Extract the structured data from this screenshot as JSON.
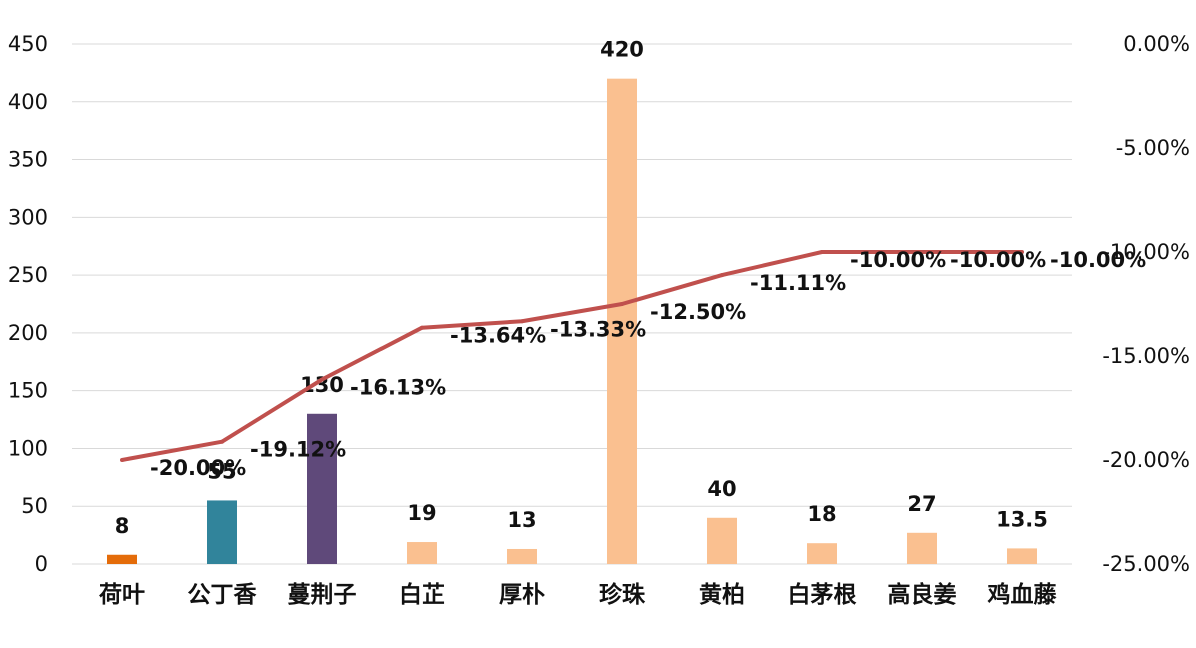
{
  "chart_data": {
    "type": "bar+line",
    "title": "",
    "categories": [
      "荷叶",
      "公丁香",
      "蔓荆子",
      "白芷",
      "厚朴",
      "珍珠",
      "黄柏",
      "白茅根",
      "高良姜",
      "鸡血藤"
    ],
    "series": [
      {
        "type": "bar",
        "axis": "left",
        "values": [
          8,
          55,
          130,
          19,
          13,
          420,
          40,
          18,
          27,
          13.5
        ],
        "labels": [
          "8",
          "55",
          "130",
          "19",
          "13",
          "420",
          "40",
          "18",
          "27",
          "13.5"
        ],
        "colors": [
          "#e46c0a",
          "#31849b",
          "#5f497a",
          "#fac090",
          "#fac090",
          "#fac090",
          "#fac090",
          "#fac090",
          "#fac090",
          "#fac090"
        ]
      },
      {
        "type": "line",
        "axis": "right",
        "values": [
          -20.0,
          -19.12,
          -16.13,
          -13.64,
          -13.33,
          -12.5,
          -11.11,
          -10.0,
          -10.0,
          -10.0
        ],
        "labels": [
          "-20.00%",
          "-19.12%",
          "-16.13%",
          "-13.64%",
          "-13.33%",
          "-12.50%",
          "-11.11%",
          "-10.00%",
          "-10.00%",
          "-10.00%"
        ],
        "color": "#c0504d"
      }
    ],
    "y_left": {
      "min": 0,
      "max": 450,
      "ticks": [
        "0",
        "50",
        "100",
        "150",
        "200",
        "250",
        "300",
        "350",
        "400",
        "450"
      ]
    },
    "y_right": {
      "min": -25,
      "max": 0,
      "ticks": [
        "-25.00%",
        "-20.00%",
        "-15.00%",
        "-10.00%",
        "-5.00%",
        "0.00%"
      ]
    },
    "grid": true,
    "legend": "none"
  }
}
